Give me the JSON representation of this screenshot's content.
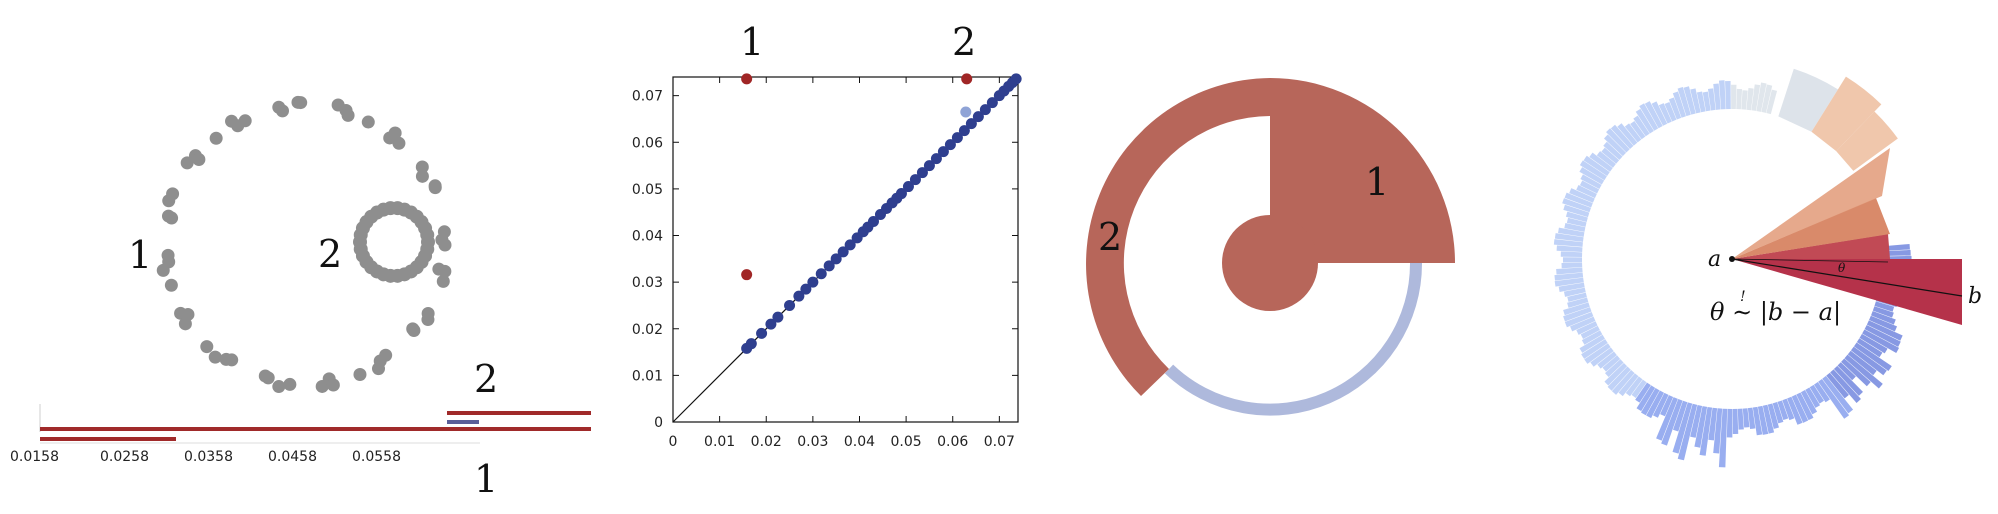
{
  "panel1": {
    "labels": {
      "ring_big": "1",
      "ring_small": "2",
      "bar_upper": "2",
      "bar_lower": "1"
    },
    "axis_ticks": [
      "0.0158",
      "0.0258",
      "0.0358",
      "0.0458",
      "0.0558"
    ],
    "colors": {
      "points": "#8e8e8e",
      "bar": "#a02a2a",
      "bar_blue": "#5a5f99"
    }
  },
  "panel2": {
    "labels": {
      "pt1": "1",
      "pt2": "2"
    },
    "chart_data": {
      "type": "scatter",
      "xlim": [
        0,
        0.074
      ],
      "ylim": [
        0,
        0.074
      ],
      "x_ticks": [
        "0",
        "0.01",
        "0.02",
        "0.03",
        "0.04",
        "0.05",
        "0.06",
        "0.07"
      ],
      "y_ticks": [
        "0",
        "0.01",
        "0.02",
        "0.03",
        "0.04",
        "0.05",
        "0.06",
        "0.07"
      ],
      "diagonal_points": {
        "x": [
          0.0158,
          0.0168,
          0.019,
          0.021,
          0.0225,
          0.025,
          0.027,
          0.0285,
          0.03,
          0.0318,
          0.0335,
          0.035,
          0.0365,
          0.038,
          0.0395,
          0.0408,
          0.0418,
          0.043,
          0.0445,
          0.0458,
          0.047,
          0.048,
          0.049,
          0.0505,
          0.052,
          0.0535,
          0.055,
          0.0565,
          0.058,
          0.0595,
          0.061,
          0.0625,
          0.064,
          0.0655,
          0.067,
          0.0685,
          0.07,
          0.071,
          0.072,
          0.0728,
          0.0736
        ],
        "y": [
          0.0158,
          0.0168,
          0.019,
          0.021,
          0.0225,
          0.025,
          0.027,
          0.0285,
          0.03,
          0.0318,
          0.0335,
          0.035,
          0.0365,
          0.038,
          0.0395,
          0.0408,
          0.0418,
          0.043,
          0.0445,
          0.0458,
          0.047,
          0.048,
          0.049,
          0.0505,
          0.052,
          0.0535,
          0.055,
          0.0565,
          0.058,
          0.0595,
          0.061,
          0.0625,
          0.064,
          0.0655,
          0.067,
          0.0685,
          0.07,
          0.071,
          0.072,
          0.0728,
          0.0736
        ]
      },
      "red_points": {
        "x": [
          0.0158,
          0.0158,
          0.063
        ],
        "y": [
          0.0736,
          0.0316,
          0.0736
        ]
      },
      "light_point": {
        "x": 0.0628,
        "y": 0.0665
      },
      "colors": {
        "blue": "#2f3f8f",
        "red": "#a02626",
        "light": "#8fa3d6"
      }
    }
  },
  "panel3": {
    "labels": {
      "seg1": "1",
      "seg2": "2"
    },
    "colors": {
      "red": "#b7665a",
      "blue": "#aeb9dc"
    }
  },
  "panel4": {
    "labels": {
      "a": "a",
      "b": "b",
      "theta": "θ",
      "formula": "θ ∼ |b − a|",
      "excl": "!"
    },
    "colors": {
      "light_blue": "#b9cdf6",
      "mid_blue": "#8ea5ee",
      "deep_blue": "#7a8ee0",
      "grey": "#dde3ea",
      "peach": "#f0c7ac",
      "salmon": "#e3a07f",
      "orange": "#d98a6a",
      "red": "#c14a55",
      "dark_red": "#b5324a"
    }
  }
}
